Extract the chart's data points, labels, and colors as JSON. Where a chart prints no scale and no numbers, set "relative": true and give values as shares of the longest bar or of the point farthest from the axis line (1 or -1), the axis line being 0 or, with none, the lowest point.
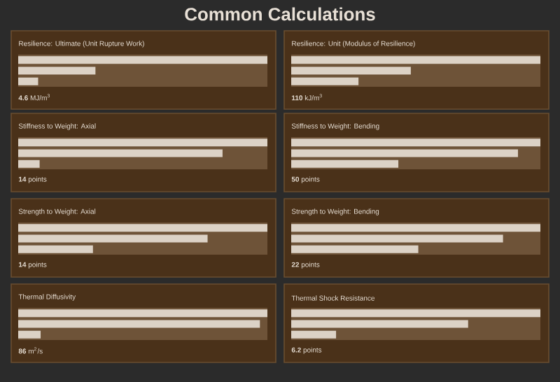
{
  "chart_data": [
    {
      "type": "bar",
      "orientation": "horizontal",
      "relative": true,
      "title": "Common Calculations",
      "subtitle": "Resilience: Ultimate (Unit Rupture Work)",
      "categories": [
        null,
        null,
        null
      ],
      "values": [
        1,
        0.31,
        0.08
      ],
      "color": "#dcd2c6",
      "annotations": [
        "**4.6** MJ/m$^{3}$"
      ]
    },
    {
      "type": "bar",
      "orientation": "horizontal",
      "relative": true,
      "subtitle": "Resilience: Unit (Modulus of Resilience)",
      "categories": [
        null,
        null,
        null
      ],
      "values": [
        1,
        0.48,
        0.27
      ],
      "color": "#dcd2c6",
      "annotations": [
        "**110** kJ/m$^{3}$"
      ]
    },
    {
      "type": "bar",
      "orientation": "horizontal",
      "relative": true,
      "subtitle": "Stiffness to Weight: Axial",
      "categories": [
        null,
        null,
        null
      ],
      "values": [
        1,
        0.82,
        0.086
      ],
      "color": "#dcd2c6",
      "annotations": [
        "**14** points"
      ]
    },
    {
      "type": "bar",
      "orientation": "horizontal",
      "relative": true,
      "subtitle": "Stiffness to Weight: Bending",
      "categories": [
        null,
        null,
        null
      ],
      "values": [
        1,
        0.91,
        0.43
      ],
      "color": "#dcd2c6",
      "annotations": [
        "**50** points"
      ]
    },
    {
      "type": "bar",
      "orientation": "horizontal",
      "relative": true,
      "subtitle": "Strength to Weight: Axial",
      "categories": [
        null,
        null,
        null
      ],
      "values": [
        1,
        0.76,
        0.3
      ],
      "color": "#dcd2c6",
      "annotations": [
        "**14** points"
      ]
    },
    {
      "type": "bar",
      "orientation": "horizontal",
      "relative": true,
      "subtitle": "Strength to Weight: Bending",
      "categories": [
        null,
        null,
        null
      ],
      "values": [
        1,
        0.85,
        0.51
      ],
      "color": "#dcd2c6",
      "annotations": [
        "**22** points"
      ]
    },
    {
      "type": "bar",
      "orientation": "horizontal",
      "relative": true,
      "subtitle": "Thermal Diffusivity",
      "categories": [
        null,
        null,
        null
      ],
      "values": [
        1,
        0.97,
        0.09
      ],
      "color": "#dcd2c6",
      "annotations": [
        "**86** m$^{2}$/s"
      ]
    },
    {
      "type": "bar",
      "orientation": "horizontal",
      "relative": true,
      "subtitle": "Thermal Shock Resistance",
      "categories": [
        null,
        null,
        null
      ],
      "values": [
        1,
        0.71,
        0.18
      ],
      "color": "#dcd2c6",
      "annotations": [
        "**6.2** points"
      ]
    }
  ]
}
